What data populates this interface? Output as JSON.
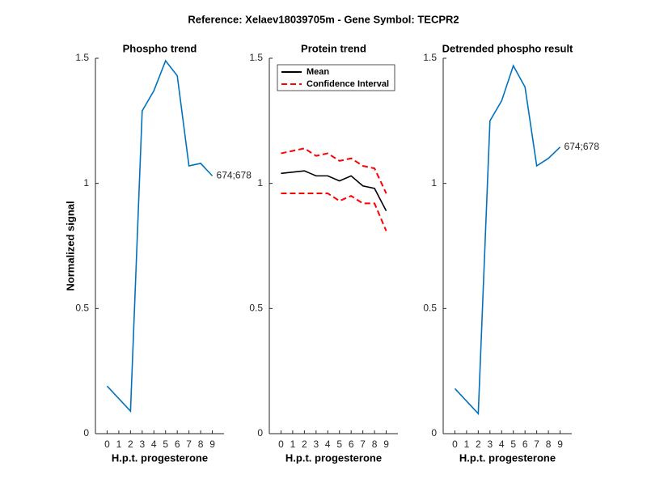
{
  "title": "Reference:  Xelaev18039705m - Gene Symbol:  TECPR2",
  "chart_data": [
    {
      "type": "line",
      "title": "Phospho trend",
      "xlabel": "H.p.t. progesterone",
      "ylabel": "Normalized signal",
      "xlim": [
        -1,
        10
      ],
      "ylim": [
        0,
        1.5
      ],
      "xticks": [
        0,
        1,
        2,
        3,
        4,
        5,
        6,
        7,
        8,
        9
      ],
      "yticks": [
        0,
        0.5,
        1,
        1.5
      ],
      "x": [
        0,
        2,
        3,
        4,
        5,
        6,
        7,
        8,
        9
      ],
      "series": [
        {
          "name": "674;678",
          "color": "#0072bd",
          "dash": false,
          "values": [
            0.19,
            0.09,
            1.29,
            1.37,
            1.49,
            1.43,
            1.07,
            1.08,
            1.03
          ]
        }
      ],
      "annotation": "674;678"
    },
    {
      "type": "line",
      "title": "Protein trend",
      "xlabel": "H.p.t. progesterone",
      "xlim": [
        -1,
        10
      ],
      "ylim": [
        0,
        1.5
      ],
      "xticks": [
        0,
        1,
        2,
        3,
        4,
        5,
        6,
        7,
        8,
        9
      ],
      "yticks": [
        0,
        0.5,
        1,
        1.5
      ],
      "x": [
        0,
        2,
        3,
        4,
        5,
        6,
        7,
        8,
        9
      ],
      "legend": "north",
      "series": [
        {
          "name": "Mean",
          "color": "#000000",
          "dash": false,
          "values": [
            1.04,
            1.05,
            1.03,
            1.03,
            1.01,
            1.03,
            0.99,
            0.98,
            0.89
          ]
        },
        {
          "name": "Confidence Interval",
          "color": "#ff0000",
          "dash": true,
          "values": [
            1.12,
            1.14,
            1.11,
            1.12,
            1.09,
            1.1,
            1.07,
            1.06,
            0.96
          ],
          "values_lower": [
            0.96,
            0.96,
            0.96,
            0.96,
            0.93,
            0.95,
            0.92,
            0.92,
            0.81
          ]
        }
      ]
    },
    {
      "type": "line",
      "title": "Detrended phospho result",
      "xlabel": "H.p.t. progesterone",
      "xlim": [
        -1,
        10
      ],
      "ylim": [
        0,
        1.5
      ],
      "xticks": [
        0,
        1,
        2,
        3,
        4,
        5,
        6,
        7,
        8,
        9
      ],
      "yticks": [
        0,
        0.5,
        1,
        1.5
      ],
      "x": [
        0,
        2,
        3,
        4,
        5,
        6,
        7,
        8,
        9
      ],
      "series": [
        {
          "name": "674;678",
          "color": "#0072bd",
          "dash": false,
          "values": [
            0.18,
            0.08,
            1.25,
            1.33,
            1.47,
            1.385,
            1.07,
            1.1,
            1.145
          ]
        }
      ],
      "annotation": "674;678"
    }
  ]
}
